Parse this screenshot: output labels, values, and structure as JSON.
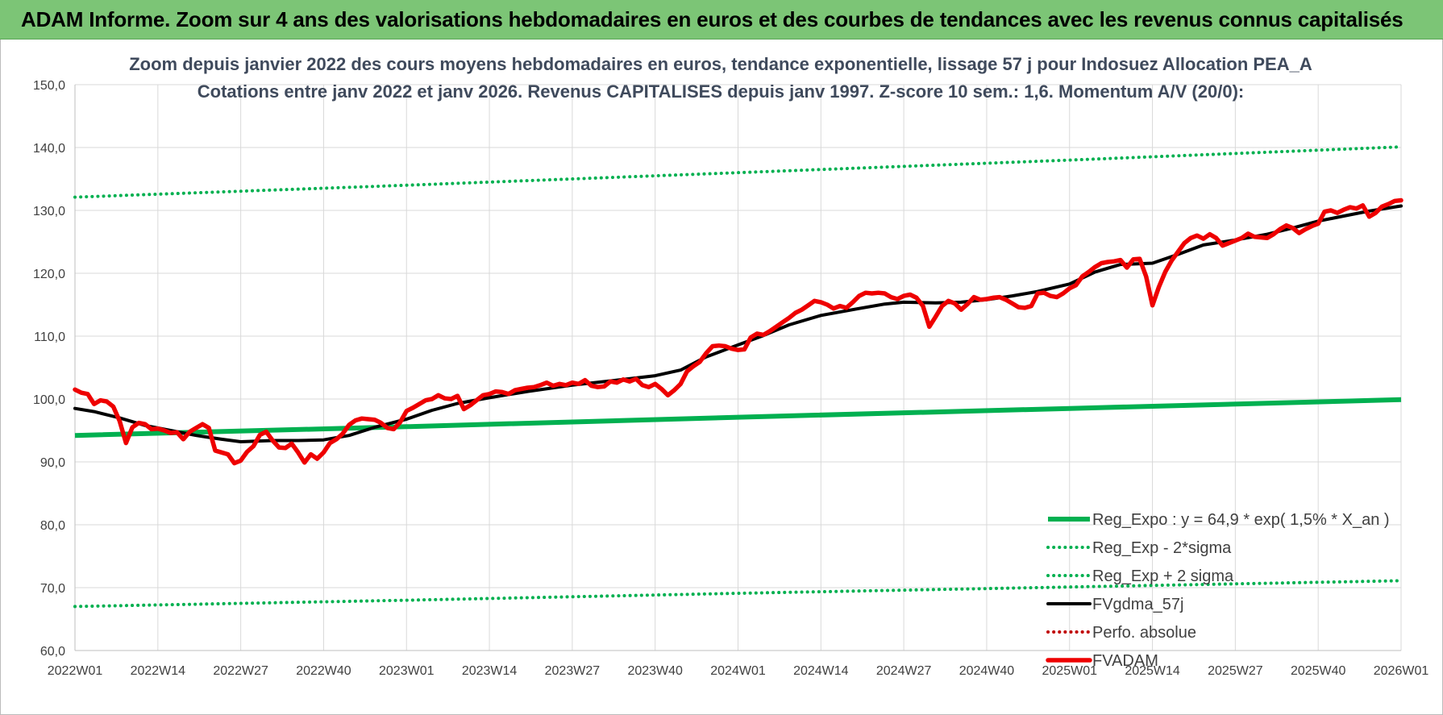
{
  "banner": {
    "title": "ADAM Informe. Zoom sur 4 ans des valorisations hebdomadaires en euros et des courbes de tendances avec les revenus connus capitalisés"
  },
  "chart_data": {
    "type": "line",
    "title_line1": "Zoom depuis janvier 2022 des cours moyens hebdomadaires en euros, tendance exponentielle, lissage 57 j pour Indosuez Allocation PEA_A",
    "title_line2": "Cotations entre janv 2022 et janv 2026. Revenus CAPITALISES depuis janv 1997. Z-score 10 sem.: 1,6. Momentum A/V (20/0):",
    "ylim": [
      60,
      150
    ],
    "yticks": [
      "60,0",
      "70,0",
      "80,0",
      "90,0",
      "100,0",
      "110,0",
      "120,0",
      "130,0",
      "140,0",
      "150,0"
    ],
    "xticks": [
      "2022W01",
      "2022W14",
      "2022W27",
      "2022W40",
      "2023W01",
      "2023W14",
      "2023W27",
      "2023W40",
      "2024W01",
      "2024W14",
      "2024W27",
      "2024W40",
      "2025W01",
      "2025W14",
      "2025W27",
      "2025W40",
      "2026W01"
    ],
    "grid": true,
    "legend_position": "bottom-right",
    "series": [
      {
        "name": "Reg_Expo : y = 64,9 * exp( 1,5% *  X_an )",
        "color": "#00b050",
        "style": "solid",
        "points": [
          [
            "2022W01",
            94.2
          ],
          [
            "2023W01",
            95.6
          ],
          [
            "2024W01",
            97.1
          ],
          [
            "2025W01",
            98.5
          ],
          [
            "2026W01",
            99.9
          ]
        ]
      },
      {
        "name": "Reg_Exp - 2*sigma",
        "color": "#00b050",
        "style": "dotted",
        "points": [
          [
            "2022W01",
            67.0
          ],
          [
            "2023W01",
            68.0
          ],
          [
            "2024W01",
            69.1
          ],
          [
            "2025W01",
            70.1
          ],
          [
            "2026W01",
            71.1
          ]
        ]
      },
      {
        "name": "Reg_Exp + 2 sigma",
        "color": "#00b050",
        "style": "dotted",
        "points": [
          [
            "2022W01",
            132.1
          ],
          [
            "2023W01",
            134.0
          ],
          [
            "2024W01",
            136.0
          ],
          [
            "2025W01",
            138.0
          ],
          [
            "2026W01",
            140.1
          ]
        ]
      },
      {
        "name": "FVgdma_57j",
        "color": "#000000",
        "style": "solid",
        "points": [
          [
            "2022W01",
            98.5
          ],
          [
            "2022W04",
            98.0
          ],
          [
            "2022W08",
            97.0
          ],
          [
            "2022W12",
            95.8
          ],
          [
            "2022W16",
            95.0
          ],
          [
            "2022W20",
            94.2
          ],
          [
            "2022W24",
            93.6
          ],
          [
            "2022W27",
            93.2
          ],
          [
            "2022W32",
            93.4
          ],
          [
            "2022W36",
            93.4
          ],
          [
            "2022W40",
            93.5
          ],
          [
            "2022W44",
            94.2
          ],
          [
            "2022W48",
            95.5
          ],
          [
            "2023W01",
            96.8
          ],
          [
            "2023W05",
            98.2
          ],
          [
            "2023W09",
            99.3
          ],
          [
            "2023W14",
            100.2
          ],
          [
            "2023W20",
            101.2
          ],
          [
            "2023W27",
            102.2
          ],
          [
            "2023W34",
            103.0
          ],
          [
            "2023W40",
            103.7
          ],
          [
            "2023W44",
            104.6
          ],
          [
            "2023W48",
            106.7
          ],
          [
            "2024W01",
            108.6
          ],
          [
            "2024W05",
            110.1
          ],
          [
            "2024W09",
            111.8
          ],
          [
            "2024W14",
            113.3
          ],
          [
            "2024W20",
            114.4
          ],
          [
            "2024W24",
            115.1
          ],
          [
            "2024W27",
            115.4
          ],
          [
            "2024W32",
            115.3
          ],
          [
            "2024W36",
            115.4
          ],
          [
            "2024W40",
            115.8
          ],
          [
            "2024W44",
            116.4
          ],
          [
            "2024W48",
            117.1
          ],
          [
            "2025W01",
            118.3
          ],
          [
            "2025W05",
            120.2
          ],
          [
            "2025W09",
            121.4
          ],
          [
            "2025W14",
            121.6
          ],
          [
            "2025W18",
            123.0
          ],
          [
            "2025W22",
            124.5
          ],
          [
            "2025W27",
            125.3
          ],
          [
            "2025W32",
            126.2
          ],
          [
            "2025W36",
            127.2
          ],
          [
            "2025W40",
            128.3
          ],
          [
            "2025W44",
            129.1
          ],
          [
            "2025W48",
            129.9
          ],
          [
            "2026W01",
            130.7
          ]
        ]
      },
      {
        "name": "Perfo. absolue",
        "color": "#c00000",
        "style": "dotted",
        "points": []
      },
      {
        "name": "FVADAM",
        "color": "#ee0000",
        "style": "solid",
        "points": [
          [
            "2022W01",
            101.5
          ],
          [
            "2022W02",
            101.0
          ],
          [
            "2022W03",
            100.8
          ],
          [
            "2022W04",
            99.2
          ],
          [
            "2022W05",
            99.8
          ],
          [
            "2022W06",
            99.6
          ],
          [
            "2022W07",
            98.8
          ],
          [
            "2022W08",
            96.5
          ],
          [
            "2022W09",
            93.0
          ],
          [
            "2022W10",
            95.5
          ],
          [
            "2022W11",
            96.2
          ],
          [
            "2022W12",
            96.0
          ],
          [
            "2022W13",
            95.2
          ],
          [
            "2022W14",
            95.3
          ],
          [
            "2022W15",
            95.0
          ],
          [
            "2022W16",
            94.6
          ],
          [
            "2022W17",
            94.7
          ],
          [
            "2022W18",
            93.6
          ],
          [
            "2022W19",
            94.8
          ],
          [
            "2022W20",
            95.4
          ],
          [
            "2022W21",
            96.0
          ],
          [
            "2022W22",
            95.4
          ],
          [
            "2022W23",
            91.8
          ],
          [
            "2022W24",
            91.5
          ],
          [
            "2022W25",
            91.2
          ],
          [
            "2022W26",
            89.8
          ],
          [
            "2022W27",
            90.2
          ],
          [
            "2022W28",
            91.6
          ],
          [
            "2022W29",
            92.5
          ],
          [
            "2022W30",
            94.3
          ],
          [
            "2022W31",
            94.8
          ],
          [
            "2022W32",
            93.4
          ],
          [
            "2022W33",
            92.3
          ],
          [
            "2022W34",
            92.2
          ],
          [
            "2022W35",
            92.9
          ],
          [
            "2022W36",
            91.5
          ],
          [
            "2022W37",
            89.9
          ],
          [
            "2022W38",
            91.2
          ],
          [
            "2022W39",
            90.5
          ],
          [
            "2022W40",
            91.5
          ],
          [
            "2022W41",
            93.0
          ],
          [
            "2022W42",
            93.6
          ],
          [
            "2022W43",
            94.5
          ],
          [
            "2022W44",
            95.9
          ],
          [
            "2022W45",
            96.6
          ],
          [
            "2022W46",
            96.9
          ],
          [
            "2022W47",
            96.8
          ],
          [
            "2022W48",
            96.7
          ],
          [
            "2022W49",
            96.2
          ],
          [
            "2022W50",
            95.4
          ],
          [
            "2022W51",
            95.2
          ],
          [
            "2022W52",
            96.3
          ],
          [
            "2023W01",
            98.1
          ],
          [
            "2023W02",
            98.6
          ],
          [
            "2023W03",
            99.2
          ],
          [
            "2023W04",
            99.8
          ],
          [
            "2023W05",
            100.0
          ],
          [
            "2023W06",
            100.6
          ],
          [
            "2023W07",
            100.1
          ],
          [
            "2023W08",
            100.0
          ],
          [
            "2023W09",
            100.5
          ],
          [
            "2023W10",
            98.4
          ],
          [
            "2023W11",
            99.0
          ],
          [
            "2023W12",
            99.8
          ],
          [
            "2023W13",
            100.6
          ],
          [
            "2023W14",
            100.8
          ],
          [
            "2023W15",
            101.2
          ],
          [
            "2023W16",
            101.1
          ],
          [
            "2023W17",
            100.8
          ],
          [
            "2023W18",
            101.4
          ],
          [
            "2023W19",
            101.6
          ],
          [
            "2023W20",
            101.8
          ],
          [
            "2023W21",
            101.9
          ],
          [
            "2023W22",
            102.2
          ],
          [
            "2023W23",
            102.6
          ],
          [
            "2023W24",
            102.1
          ],
          [
            "2023W25",
            102.4
          ],
          [
            "2023W26",
            102.2
          ],
          [
            "2023W27",
            102.6
          ],
          [
            "2023W28",
            102.4
          ],
          [
            "2023W29",
            103.0
          ],
          [
            "2023W30",
            102.1
          ],
          [
            "2023W31",
            101.9
          ],
          [
            "2023W32",
            102.0
          ],
          [
            "2023W33",
            102.8
          ],
          [
            "2023W34",
            102.6
          ],
          [
            "2023W35",
            103.1
          ],
          [
            "2023W36",
            102.8
          ],
          [
            "2023W37",
            103.2
          ],
          [
            "2023W38",
            102.2
          ],
          [
            "2023W39",
            101.9
          ],
          [
            "2023W40",
            102.4
          ],
          [
            "2023W41",
            101.6
          ],
          [
            "2023W42",
            100.6
          ],
          [
            "2023W43",
            101.4
          ],
          [
            "2023W44",
            102.4
          ],
          [
            "2023W45",
            104.4
          ],
          [
            "2023W46",
            105.2
          ],
          [
            "2023W47",
            105.9
          ],
          [
            "2023W48",
            107.3
          ],
          [
            "2023W49",
            108.4
          ],
          [
            "2023W50",
            108.5
          ],
          [
            "2023W51",
            108.4
          ],
          [
            "2023W52",
            108.0
          ],
          [
            "2024W01",
            107.8
          ],
          [
            "2024W02",
            107.9
          ],
          [
            "2024W03",
            109.8
          ],
          [
            "2024W04",
            110.4
          ],
          [
            "2024W05",
            110.2
          ],
          [
            "2024W06",
            110.8
          ],
          [
            "2024W07",
            111.5
          ],
          [
            "2024W08",
            112.2
          ],
          [
            "2024W09",
            112.9
          ],
          [
            "2024W10",
            113.7
          ],
          [
            "2024W11",
            114.2
          ],
          [
            "2024W12",
            114.9
          ],
          [
            "2024W13",
            115.6
          ],
          [
            "2024W14",
            115.4
          ],
          [
            "2024W15",
            115.0
          ],
          [
            "2024W16",
            114.4
          ],
          [
            "2024W17",
            114.8
          ],
          [
            "2024W18",
            114.5
          ],
          [
            "2024W19",
            115.4
          ],
          [
            "2024W20",
            116.4
          ],
          [
            "2024W21",
            116.9
          ],
          [
            "2024W22",
            116.8
          ],
          [
            "2024W23",
            116.9
          ],
          [
            "2024W24",
            116.8
          ],
          [
            "2024W25",
            116.2
          ],
          [
            "2024W26",
            115.9
          ],
          [
            "2024W27",
            116.4
          ],
          [
            "2024W28",
            116.6
          ],
          [
            "2024W29",
            116.1
          ],
          [
            "2024W30",
            114.8
          ],
          [
            "2024W31",
            111.5
          ],
          [
            "2024W32",
            113.1
          ],
          [
            "2024W33",
            114.8
          ],
          [
            "2024W34",
            115.6
          ],
          [
            "2024W35",
            115.2
          ],
          [
            "2024W36",
            114.2
          ],
          [
            "2024W37",
            115.1
          ],
          [
            "2024W38",
            116.2
          ],
          [
            "2024W39",
            115.8
          ],
          [
            "2024W40",
            115.9
          ],
          [
            "2024W41",
            116.1
          ],
          [
            "2024W42",
            116.2
          ],
          [
            "2024W43",
            115.8
          ],
          [
            "2024W44",
            115.2
          ],
          [
            "2024W45",
            114.6
          ],
          [
            "2024W46",
            114.5
          ],
          [
            "2024W47",
            114.8
          ],
          [
            "2024W48",
            116.8
          ],
          [
            "2024W49",
            116.9
          ],
          [
            "2024W50",
            116.4
          ],
          [
            "2024W51",
            116.2
          ],
          [
            "2024W52",
            116.8
          ],
          [
            "2025W01",
            117.6
          ],
          [
            "2025W02",
            118.1
          ],
          [
            "2025W03",
            119.5
          ],
          [
            "2025W04",
            120.2
          ],
          [
            "2025W05",
            121.0
          ],
          [
            "2025W06",
            121.6
          ],
          [
            "2025W07",
            121.8
          ],
          [
            "2025W08",
            121.9
          ],
          [
            "2025W09",
            122.1
          ],
          [
            "2025W10",
            120.9
          ],
          [
            "2025W11",
            122.2
          ],
          [
            "2025W12",
            122.3
          ],
          [
            "2025W13",
            119.5
          ],
          [
            "2025W14",
            114.9
          ],
          [
            "2025W15",
            117.8
          ],
          [
            "2025W16",
            120.2
          ],
          [
            "2025W17",
            122.0
          ],
          [
            "2025W18",
            123.4
          ],
          [
            "2025W19",
            124.8
          ],
          [
            "2025W20",
            125.6
          ],
          [
            "2025W21",
            126.0
          ],
          [
            "2025W22",
            125.5
          ],
          [
            "2025W23",
            126.2
          ],
          [
            "2025W24",
            125.6
          ],
          [
            "2025W25",
            124.4
          ],
          [
            "2025W26",
            124.8
          ],
          [
            "2025W27",
            125.2
          ],
          [
            "2025W28",
            125.6
          ],
          [
            "2025W29",
            126.3
          ],
          [
            "2025W30",
            125.8
          ],
          [
            "2025W31",
            125.7
          ],
          [
            "2025W32",
            125.6
          ],
          [
            "2025W33",
            126.2
          ],
          [
            "2025W34",
            127.0
          ],
          [
            "2025W35",
            127.6
          ],
          [
            "2025W36",
            127.2
          ],
          [
            "2025W37",
            126.4
          ],
          [
            "2025W38",
            127.0
          ],
          [
            "2025W39",
            127.5
          ],
          [
            "2025W40",
            127.9
          ],
          [
            "2025W41",
            129.8
          ],
          [
            "2025W42",
            130.0
          ],
          [
            "2025W43",
            129.6
          ],
          [
            "2025W44",
            130.1
          ],
          [
            "2025W45",
            130.5
          ],
          [
            "2025W46",
            130.3
          ],
          [
            "2025W47",
            130.8
          ],
          [
            "2025W48",
            129.0
          ],
          [
            "2025W49",
            129.6
          ],
          [
            "2025W50",
            130.6
          ],
          [
            "2025W51",
            131.0
          ],
          [
            "2025W52",
            131.5
          ],
          [
            "2026W01",
            131.6
          ]
        ]
      }
    ]
  }
}
